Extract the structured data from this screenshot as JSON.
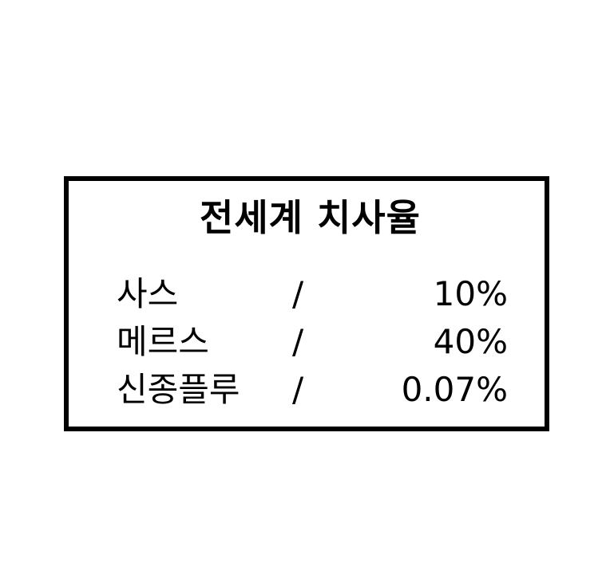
{
  "title": "전세계 치사율",
  "rows": [
    {
      "name": "사스",
      "separator": "/",
      "rate": "10%"
    },
    {
      "name": "메르스",
      "separator": "/",
      "rate": "40%"
    },
    {
      "name": "신종플루",
      "separator": "/",
      "rate": "0.07%"
    }
  ],
  "colors": {
    "border": "#000000",
    "text": "#000000",
    "background": "#ffffff"
  }
}
